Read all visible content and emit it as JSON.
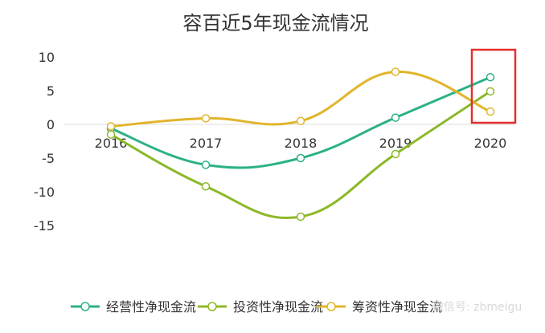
{
  "chart_data": {
    "type": "line",
    "title": "容百近5年现金流情况",
    "categories": [
      "2016",
      "2017",
      "2018",
      "2019",
      "2020"
    ],
    "ylim": [
      -15,
      10
    ],
    "yticks": [
      10,
      5,
      0,
      -5,
      -10,
      -15
    ],
    "smooth": true,
    "grid": false,
    "legend_position": "bottom",
    "series": [
      {
        "name": "经营性净现金流",
        "color": "#2bb187",
        "values": [
          -0.6,
          -6.0,
          -5.0,
          1.0,
          7.0
        ]
      },
      {
        "name": "投资性净现金流",
        "color": "#8cb829",
        "values": [
          -1.5,
          -9.2,
          -13.7,
          -4.4,
          4.9
        ]
      },
      {
        "name": "筹资性净现金流",
        "color": "#e1b52c",
        "values": [
          -0.3,
          0.9,
          0.5,
          7.8,
          1.9
        ]
      }
    ],
    "highlight": {
      "category": "2020",
      "color": "#e52f2f"
    }
  },
  "watermark": "微信号: zbmeigu"
}
